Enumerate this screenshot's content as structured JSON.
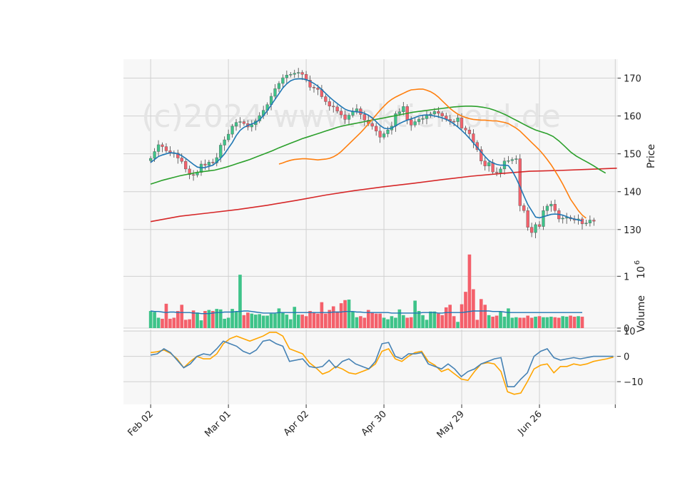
{
  "chart_data": {
    "type": "candlestick",
    "watermark": "(c)2024 www.aktienloid.de",
    "colors": {
      "up": "#3ec389",
      "down": "#f4606b",
      "sma_short": "#1f77b4",
      "sma_mid": "#ff7f0e",
      "sma_long": "#2ca02c",
      "sma_200": "#d62728",
      "macd": "#4682b4",
      "signal": "#ffa500",
      "panel_bg": "#f7f7f7",
      "grid": "#d0d0d0"
    },
    "x_tick_labels": [
      "Feb 02",
      "Mar 01",
      "Apr 02",
      "Apr 30",
      "May 29",
      "Jun 26"
    ],
    "x_tick_index": [
      0,
      20,
      40,
      60,
      80,
      100
    ],
    "x_range": [
      -7,
      120
    ],
    "price_panel": {
      "ylabel": "Price",
      "ylim": [
        124.5,
        175.0
      ],
      "yticks": [
        130,
        140,
        150,
        160,
        170
      ],
      "ytick_labels": [
        "130",
        "140",
        "150",
        "160",
        "170"
      ],
      "close": [
        148.8,
        150.6,
        152.4,
        151.9,
        150.8,
        150.3,
        150.2,
        148.9,
        148.0,
        146.0,
        144.5,
        144.4,
        145.1,
        147.3,
        147.0,
        147.8,
        147.6,
        149.0,
        152.3,
        153.7,
        155.2,
        157.3,
        158.3,
        158.5,
        158.0,
        157.1,
        157.7,
        158.7,
        160.1,
        161.5,
        163.0,
        165.2,
        167.2,
        168.6,
        170.1,
        170.8,
        171.0,
        171.3,
        171.5,
        171.0,
        169.5,
        167.6,
        167.4,
        167.0,
        165.1,
        163.8,
        162.6,
        162.4,
        161.3,
        160.3,
        159.1,
        160.2,
        161.3,
        161.9,
        160.4,
        158.9,
        158.0,
        157.3,
        156.0,
        154.4,
        155.3,
        156.3,
        157.3,
        160.6,
        161.1,
        162.5,
        159.0,
        157.6,
        158.5,
        159.1,
        159.3,
        160.1,
        160.5,
        161.2,
        160.7,
        160.0,
        159.1,
        158.6,
        158.5,
        159.5,
        156.8,
        156.3,
        155.3,
        153.0,
        151.1,
        148.1,
        146.8,
        147.7,
        145.2,
        145.0,
        146.0,
        148.1,
        148.2,
        148.5,
        148.7,
        136.3,
        135.0,
        130.6,
        129.2,
        131.3,
        130.8,
        135.0,
        136.2,
        136.7,
        135.0,
        132.8,
        133.0,
        133.2,
        132.8,
        132.5,
        132.8,
        131.5,
        131.7,
        132.5,
        132.2
      ],
      "sma_short": [
        147.7,
        148.5,
        149.3,
        149.7,
        150.0,
        150.3,
        150.2,
        150.0,
        149.5,
        148.8,
        148.0,
        147.2,
        146.5,
        146.3,
        146.4,
        146.7,
        147.0,
        147.8,
        148.8,
        150.0,
        151.5,
        153.0,
        154.8,
        156.2,
        157.0,
        157.5,
        157.9,
        158.3,
        159.0,
        160.1,
        161.4,
        162.9,
        164.4,
        165.9,
        167.4,
        168.5,
        169.3,
        169.7,
        169.8,
        169.8,
        169.6,
        169.2,
        168.6,
        167.9,
        167.0,
        166.0,
        165.0,
        164.1,
        163.3,
        162.5,
        161.8,
        161.4,
        161.2,
        161.1,
        161.0,
        160.7,
        160.2,
        159.5,
        158.5,
        157.5,
        156.8,
        156.6,
        156.8,
        157.4,
        158.0,
        158.5,
        158.9,
        159.2,
        159.6,
        160.0,
        160.2,
        160.3,
        160.2,
        160.0,
        159.8,
        159.5,
        159.1,
        158.6,
        157.9,
        157.1,
        156.2,
        155.2,
        154.1,
        152.9,
        151.7,
        150.5,
        149.3,
        148.2,
        147.6,
        147.2,
        147.0,
        147.0,
        146.9,
        145.5,
        143.6,
        141.3,
        138.9,
        136.6,
        135.0,
        133.3,
        133.1,
        133.4,
        133.7,
        134.0,
        134.1,
        134.0,
        133.8,
        133.4,
        133.0,
        132.8,
        132.5,
        132.3
      ],
      "sma_mid": [
        147.3,
        147.6,
        148.0,
        148.3,
        148.5,
        148.6,
        148.7,
        148.7,
        148.6,
        148.5,
        148.4,
        148.5,
        148.6,
        148.8,
        149.2,
        149.8,
        150.6,
        151.6,
        152.6,
        153.6,
        154.6,
        155.6,
        156.7,
        157.9,
        159.1,
        160.3,
        161.5,
        162.6,
        163.6,
        164.4,
        165.0,
        165.5,
        166.0,
        166.5,
        166.9,
        167.0,
        167.1,
        167.1,
        166.8,
        166.4,
        165.8,
        165.0,
        164.0,
        163.0,
        162.0,
        161.2,
        160.5,
        160.0,
        159.6,
        159.3,
        159.1,
        159.0,
        158.9,
        158.9,
        158.8,
        158.7,
        158.7,
        158.5,
        158.3,
        158.0,
        157.4,
        156.8,
        156.0,
        155.0,
        154.0,
        153.0,
        152.0,
        151.0,
        149.8,
        148.5,
        147.1,
        145.5,
        143.8,
        142.0,
        140.0,
        138.0,
        136.5,
        135.0,
        133.8,
        133.0
      ],
      "sma_mid_start": 33,
      "sma_long": [
        142.0,
        142.5,
        143.0,
        143.4,
        143.8,
        144.2,
        144.5,
        144.8,
        145.1,
        145.3,
        145.5,
        145.7,
        146.1,
        146.5,
        147.0,
        147.5,
        148.0,
        148.5,
        149.1,
        149.7,
        150.3,
        150.9,
        151.6,
        152.2,
        152.8,
        153.4,
        154.0,
        154.5,
        155.0,
        155.5,
        156.0,
        156.5,
        157.0,
        157.4,
        157.7,
        158.0,
        158.3,
        158.6,
        158.9,
        159.2,
        159.5,
        159.8,
        160.1,
        160.4,
        160.7,
        161.0,
        161.2,
        161.4,
        161.6,
        161.8,
        162.0,
        162.2,
        162.4,
        162.5,
        162.6,
        162.6,
        162.5,
        162.3,
        162.0,
        161.5,
        160.9,
        160.2,
        159.4,
        158.6,
        157.8,
        157.0,
        156.3,
        155.8,
        155.3,
        154.6,
        153.4,
        152.0,
        150.5,
        149.4,
        148.5,
        147.7,
        146.8,
        145.8,
        144.9
      ],
      "sma_long_start": 0,
      "sma_long_step": 1.5,
      "sma_200": [
        132.1,
        133.5,
        134.4,
        135.3,
        136.4,
        137.7,
        139.1,
        140.3,
        141.3,
        142.2,
        143.2,
        144.1,
        144.8,
        145.4,
        145.6,
        145.9,
        146.2
      ],
      "sma_200_step": 7.5
    },
    "volume_panel": {
      "ylabel": "Volume  10^6",
      "ylabel_text": "Volume",
      "ylabel_exp_base": "10",
      "ylabel_exp": "6",
      "ylim": [
        0,
        1.5
      ],
      "yticks": [
        0,
        1
      ],
      "ytick_labels": [
        "0",
        "1"
      ],
      "volumes": [
        0.33,
        0.31,
        0.2,
        0.18,
        0.47,
        0.18,
        0.2,
        0.33,
        0.45,
        0.16,
        0.17,
        0.34,
        0.3,
        0.15,
        0.33,
        0.35,
        0.33,
        0.37,
        0.36,
        0.18,
        0.2,
        0.37,
        0.32,
        1.03,
        0.25,
        0.3,
        0.28,
        0.26,
        0.27,
        0.24,
        0.24,
        0.28,
        0.28,
        0.38,
        0.3,
        0.26,
        0.17,
        0.41,
        0.26,
        0.26,
        0.23,
        0.33,
        0.31,
        0.28,
        0.5,
        0.28,
        0.35,
        0.42,
        0.32,
        0.48,
        0.54,
        0.55,
        0.32,
        0.21,
        0.23,
        0.2,
        0.35,
        0.3,
        0.28,
        0.28,
        0.2,
        0.17,
        0.23,
        0.2,
        0.36,
        0.25,
        0.2,
        0.21,
        0.53,
        0.33,
        0.25,
        0.16,
        0.32,
        0.32,
        0.28,
        0.25,
        0.4,
        0.45,
        0.23,
        0.12,
        0.46,
        0.7,
        1.42,
        0.75,
        0.16,
        0.56,
        0.45,
        0.25,
        0.22,
        0.24,
        0.32,
        0.22,
        0.38,
        0.2,
        0.21,
        0.2,
        0.2,
        0.24,
        0.2,
        0.22,
        0.23,
        0.21,
        0.21,
        0.22,
        0.21,
        0.2,
        0.23,
        0.22,
        0.24,
        0.22,
        0.23,
        0.22
      ],
      "volume_ma": [
        0.33,
        0.32,
        0.32,
        0.31,
        0.3,
        0.31,
        0.31,
        0.3,
        0.3,
        0.3,
        0.3,
        0.29,
        0.29,
        0.28,
        0.28,
        0.28,
        0.29,
        0.3,
        0.3,
        0.31,
        0.31,
        0.31,
        0.32,
        0.32,
        0.33,
        0.33,
        0.32,
        0.31,
        0.3,
        0.29,
        0.29,
        0.29,
        0.29,
        0.3,
        0.3,
        0.3,
        0.3,
        0.3,
        0.3,
        0.3,
        0.3,
        0.3,
        0.3,
        0.3,
        0.3,
        0.3,
        0.3,
        0.31,
        0.31,
        0.31,
        0.32,
        0.32,
        0.32,
        0.31,
        0.31,
        0.3,
        0.3,
        0.3,
        0.3,
        0.3,
        0.3,
        0.3,
        0.29,
        0.29,
        0.29,
        0.29,
        0.29,
        0.29,
        0.29,
        0.29,
        0.3,
        0.3,
        0.3,
        0.3,
        0.29,
        0.29,
        0.3,
        0.3,
        0.3,
        0.3,
        0.3,
        0.31,
        0.32,
        0.33,
        0.33,
        0.33,
        0.33,
        0.33,
        0.32,
        0.32,
        0.32,
        0.31,
        0.3,
        0.3,
        0.3,
        0.3,
        0.3,
        0.3,
        0.3,
        0.3,
        0.3,
        0.3,
        0.3,
        0.3,
        0.3,
        0.3,
        0.3,
        0.3,
        0.3,
        0.3,
        0.3,
        0.3
      ]
    },
    "macd_panel": {
      "ylim": [
        -19.0,
        10.6
      ],
      "yticks": [
        10,
        0,
        -10
      ],
      "ytick_labels": [
        "10",
        "0",
        "−10"
      ],
      "macd_step": 2,
      "macd": [
        0.5,
        1.0,
        3.0,
        1.5,
        -1.5,
        -4.5,
        -3.0,
        0.0,
        1.0,
        0.5,
        3.0,
        6.0,
        5.0,
        4.0,
        2.0,
        1.0,
        2.5,
        6.0,
        6.5,
        5.0,
        4.0,
        -2.0,
        -1.5,
        -1.0,
        -4.0,
        -4.5,
        -4.0,
        -1.5,
        -4.5,
        -2.0,
        -1.0,
        -3.0,
        -4.0,
        -5.0,
        -2.0,
        5.0,
        5.5,
        0.0,
        -1.0,
        1.0,
        1.0,
        1.5,
        -3.0,
        -4.0,
        -5.0,
        -3.0,
        -5.0,
        -8.0,
        -6.0,
        -5.0,
        -3.0,
        -2.0,
        -1.0,
        -0.5,
        -12.0,
        -12.0,
        -9.0,
        -6.5,
        0.0,
        2.0,
        3.0,
        -0.5,
        -1.5,
        -1.0,
        -0.5,
        -1.0,
        -0.5,
        0.0,
        0.0,
        0.0,
        0.0
      ],
      "signal": [
        1.5,
        1.8,
        2.5,
        1.2,
        -1.0,
        -4.5,
        -2.0,
        0.0,
        -1.0,
        -1.0,
        1.0,
        5.0,
        7.0,
        8.0,
        7.0,
        6.0,
        7.0,
        8.0,
        9.5,
        9.5,
        8.0,
        3.0,
        2.0,
        1.0,
        -2.5,
        -4.5,
        -7.0,
        -6.0,
        -4.0,
        -5.0,
        -6.5,
        -7.0,
        -6.0,
        -5.0,
        -3.0,
        2.0,
        3.0,
        -1.0,
        -2.0,
        0.0,
        1.5,
        2.0,
        -2.0,
        -3.5,
        -6.0,
        -5.0,
        -7.0,
        -9.0,
        -9.5,
        -6.0,
        -3.0,
        -2.5,
        -3.0,
        -6.0,
        -14.0,
        -15.0,
        -14.5,
        -10.0,
        -5.0,
        -3.5,
        -3.0,
        -6.5,
        -4.0,
        -4.0,
        -3.0,
        -3.5,
        -3.0,
        -2.0,
        -1.5,
        -1.0,
        -0.3
      ]
    }
  }
}
